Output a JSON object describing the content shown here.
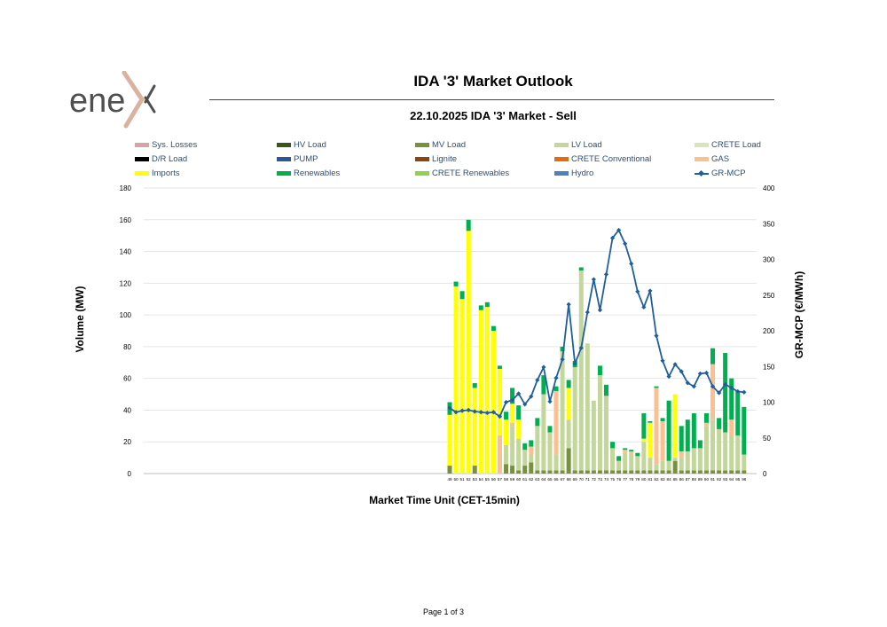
{
  "brand": {
    "logo_text": "enex",
    "logo_text_color": "#4f4f4f",
    "logo_mark_color": "#d9b3a0"
  },
  "header": {
    "title": "IDA '3' Market Outlook",
    "subtitle": "22.10.2025  IDA '3' Market - Sell"
  },
  "legend_labels": [
    "Sys. Losses",
    "HV Load",
    "MV Load",
    "LV Load",
    "CRETE Load",
    "D/R Load",
    "PUMP",
    "Lignite",
    "CRETE Conventional",
    "GAS",
    "Imports",
    "Renewables",
    "CRETE Renewables",
    "Hydro",
    "GR-MCP"
  ],
  "footer": {
    "page_label": "Page 1 of 3"
  },
  "chart_data": {
    "type": "bar",
    "stacked": true,
    "xlabel": "Market Time Unit (CET-15min)",
    "ylabel": "Volume (MW)",
    "y2label": "GR-MCP (€/MWh)",
    "ylim": [
      0,
      180
    ],
    "y2lim": [
      0,
      400
    ],
    "yticks": [
      0,
      20,
      40,
      60,
      80,
      100,
      120,
      140,
      160,
      180
    ],
    "y2ticks": [
      0,
      50,
      100,
      150,
      200,
      250,
      300,
      350,
      400
    ],
    "grid": true,
    "legend_position": "top",
    "categories": [
      49,
      50,
      51,
      52,
      53,
      54,
      55,
      56,
      57,
      58,
      59,
      60,
      61,
      62,
      63,
      64,
      65,
      66,
      67,
      68,
      69,
      70,
      71,
      72,
      73,
      74,
      75,
      76,
      77,
      78,
      79,
      80,
      81,
      82,
      83,
      84,
      85,
      86,
      87,
      88,
      89,
      90,
      91,
      92,
      93,
      94,
      95,
      96
    ],
    "series": [
      {
        "name": "Sys. Losses",
        "color": "#d4a5a5",
        "values": [
          0,
          0,
          0,
          0,
          0,
          0,
          0,
          0,
          0,
          0,
          0,
          0,
          0,
          0,
          0,
          0,
          0,
          0,
          0,
          0,
          0,
          0,
          0,
          0,
          0,
          0,
          0,
          0,
          0,
          0,
          0,
          0,
          0,
          0,
          0,
          0,
          0,
          0,
          0,
          0,
          0,
          0,
          0,
          0,
          0,
          0,
          0,
          0
        ]
      },
      {
        "name": "HV Load",
        "color": "#375623",
        "values": [
          0,
          0,
          0,
          0,
          0,
          0,
          0,
          0,
          0,
          0,
          0,
          0,
          0,
          0,
          0,
          0,
          0,
          0,
          0,
          0,
          0,
          0,
          0,
          0,
          0,
          0,
          0,
          0,
          0,
          0,
          0,
          0,
          0,
          0,
          0,
          0,
          0,
          0,
          0,
          0,
          0,
          0,
          0,
          0,
          0,
          0,
          0,
          0
        ]
      },
      {
        "name": "MV Load",
        "color": "#76923c",
        "values": [
          5,
          0,
          0,
          0,
          5,
          0,
          0,
          0,
          0,
          6,
          5,
          2,
          5,
          7,
          2,
          2,
          2,
          2,
          2,
          16,
          2,
          2,
          2,
          2,
          2,
          2,
          2,
          2,
          2,
          2,
          2,
          2,
          2,
          2,
          2,
          2,
          8,
          2,
          2,
          2,
          2,
          2,
          2,
          2,
          2,
          2,
          2,
          2
        ]
      },
      {
        "name": "LV Load",
        "color": "#c4d79b",
        "values": [
          0,
          0,
          0,
          0,
          0,
          0,
          0,
          0,
          0,
          12,
          25,
          20,
          10,
          5,
          28,
          48,
          24,
          10,
          75,
          18,
          65,
          126,
          80,
          44,
          60,
          47,
          14,
          6,
          11,
          10,
          9,
          18,
          8,
          4,
          6,
          6,
          2,
          8,
          12,
          14,
          14,
          28,
          32,
          26,
          24,
          22,
          22,
          10
        ]
      },
      {
        "name": "CRETE Load",
        "color": "#d8e4bc",
        "values": [
          0,
          0,
          0,
          0,
          0,
          0,
          0,
          0,
          0,
          0,
          0,
          0,
          0,
          0,
          0,
          0,
          0,
          0,
          0,
          0,
          0,
          0,
          0,
          0,
          0,
          0,
          0,
          0,
          0,
          0,
          0,
          0,
          0,
          0,
          0,
          0,
          0,
          0,
          0,
          0,
          0,
          0,
          0,
          0,
          0,
          0,
          0,
          0
        ]
      },
      {
        "name": "D/R Load",
        "color": "#000000",
        "values": [
          0,
          0,
          0,
          0,
          0,
          0,
          0,
          0,
          0,
          0,
          0,
          0,
          0,
          0,
          0,
          0,
          0,
          0,
          0,
          0,
          0,
          0,
          0,
          0,
          0,
          0,
          0,
          0,
          0,
          0,
          0,
          0,
          0,
          0,
          0,
          0,
          0,
          0,
          0,
          0,
          0,
          0,
          0,
          0,
          0,
          0,
          0,
          0
        ]
      },
      {
        "name": "PUMP",
        "color": "#2f5597",
        "values": [
          0,
          0,
          0,
          0,
          0,
          0,
          0,
          0,
          0,
          0,
          0,
          0,
          0,
          0,
          0,
          0,
          0,
          0,
          0,
          0,
          0,
          0,
          0,
          0,
          0,
          0,
          0,
          0,
          0,
          0,
          0,
          0,
          0,
          0,
          0,
          0,
          0,
          0,
          0,
          0,
          0,
          0,
          0,
          0,
          0,
          0,
          0,
          0
        ]
      },
      {
        "name": "Lignite",
        "color": "#8b4513",
        "values": [
          0,
          0,
          0,
          0,
          0,
          0,
          0,
          0,
          0,
          0,
          0,
          0,
          0,
          0,
          0,
          0,
          0,
          0,
          0,
          0,
          0,
          0,
          0,
          0,
          0,
          0,
          0,
          0,
          0,
          0,
          0,
          0,
          0,
          0,
          0,
          0,
          0,
          0,
          0,
          0,
          0,
          0,
          0,
          0,
          0,
          0,
          0,
          0
        ]
      },
      {
        "name": "CRETE Conventional",
        "color": "#e46c0a",
        "values": [
          0,
          0,
          0,
          0,
          0,
          0,
          0,
          0,
          0,
          0,
          0,
          0,
          0,
          0,
          0,
          0,
          0,
          0,
          0,
          0,
          0,
          0,
          0,
          0,
          0,
          0,
          0,
          0,
          0,
          0,
          0,
          0,
          0,
          0,
          0,
          0,
          0,
          0,
          0,
          0,
          0,
          0,
          0,
          0,
          0,
          0,
          0,
          0
        ]
      },
      {
        "name": "GAS",
        "color": "#fac090",
        "values": [
          0,
          0,
          0,
          0,
          0,
          0,
          0,
          0,
          24,
          0,
          2,
          0,
          0,
          5,
          0,
          0,
          0,
          40,
          0,
          0,
          0,
          0,
          0,
          0,
          0,
          0,
          0,
          0,
          2,
          2,
          0,
          0,
          0,
          48,
          25,
          0,
          0,
          4,
          0,
          0,
          0,
          2,
          35,
          0,
          0,
          10,
          0,
          0
        ]
      },
      {
        "name": "Imports",
        "color": "#ffff00",
        "values": [
          32,
          118,
          110,
          153,
          49,
          103,
          105,
          90,
          42,
          16,
          12,
          12,
          0,
          0,
          0,
          0,
          0,
          0,
          0,
          20,
          0,
          0,
          0,
          0,
          0,
          0,
          0,
          0,
          0,
          0,
          0,
          2,
          22,
          0,
          0,
          0,
          40,
          0,
          0,
          0,
          0,
          0,
          0,
          0,
          0,
          0,
          0,
          0
        ]
      },
      {
        "name": "Renewables",
        "color": "#00b050",
        "values": [
          8,
          3,
          5,
          7,
          3,
          3,
          3,
          3,
          2,
          5,
          10,
          9,
          4,
          4,
          5,
          12,
          4,
          3,
          3,
          5,
          4,
          2,
          0,
          0,
          6,
          7,
          4,
          3,
          1,
          1,
          2,
          16,
          1,
          1,
          2,
          38,
          0,
          16,
          20,
          22,
          5,
          6,
          10,
          7,
          50,
          26,
          28,
          30
        ]
      },
      {
        "name": "CRETE Renewables",
        "color": "#92d050",
        "values": [
          0,
          0,
          0,
          0,
          0,
          0,
          0,
          0,
          0,
          0,
          0,
          0,
          0,
          0,
          0,
          0,
          0,
          0,
          0,
          0,
          0,
          0,
          0,
          0,
          0,
          0,
          0,
          0,
          0,
          0,
          0,
          0,
          0,
          0,
          0,
          0,
          0,
          0,
          0,
          0,
          0,
          0,
          0,
          0,
          0,
          0,
          0,
          0
        ]
      },
      {
        "name": "Hydro",
        "color": "#4f81bd",
        "values": [
          0,
          0,
          0,
          0,
          0,
          0,
          0,
          0,
          0,
          0,
          0,
          0,
          0,
          0,
          0,
          0,
          0,
          0,
          0,
          0,
          0,
          0,
          0,
          0,
          0,
          0,
          0,
          0,
          0,
          0,
          0,
          0,
          0,
          0,
          0,
          0,
          0,
          0,
          0,
          0,
          0,
          0,
          0,
          0,
          0,
          0,
          0,
          0
        ]
      }
    ],
    "line_series": {
      "name": "GR-MCP",
      "color": "#1f5f9c",
      "axis": "right",
      "values": [
        92,
        86,
        88,
        89,
        87,
        86,
        85,
        86,
        80,
        100,
        103,
        112,
        97,
        108,
        131,
        149,
        101,
        134,
        160,
        237,
        154,
        176,
        226,
        272,
        229,
        279,
        330,
        341,
        322,
        294,
        255,
        233,
        256,
        193,
        158,
        136,
        153,
        143,
        127,
        122,
        140,
        141,
        122,
        113,
        125,
        120,
        115,
        114
      ]
    }
  }
}
